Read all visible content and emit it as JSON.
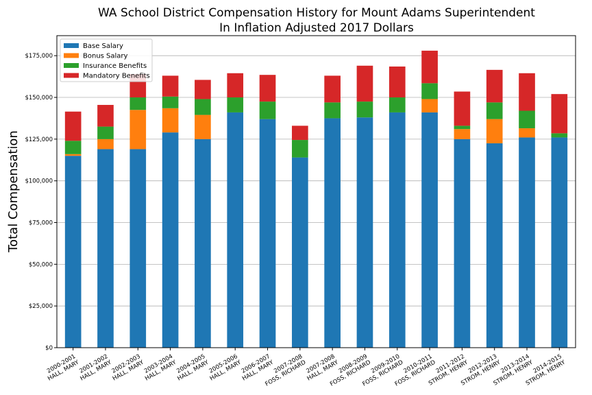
{
  "chart_data": {
    "type": "bar",
    "stacked": true,
    "title": "WA School District Compensation History for Mount Adams Superintendent",
    "subtitle": "In Inflation Adjusted 2017 Dollars",
    "ylabel": "Total Compensation",
    "xlabel": "",
    "ylim": [
      0,
      187000
    ],
    "yticks": [
      0,
      25000,
      50000,
      75000,
      100000,
      125000,
      150000,
      175000
    ],
    "ytick_labels": [
      "$0",
      "$25,000",
      "$50,000",
      "$75,000",
      "$100,000",
      "$125,000",
      "$150,000",
      "$175,000"
    ],
    "grid": "horizontal",
    "legend_position": "top-left",
    "categories": [
      [
        "2000-2001",
        "HALL, MARY"
      ],
      [
        "2001-2002",
        "HALL, MARY"
      ],
      [
        "2002-2003",
        "HALL, MARY"
      ],
      [
        "2003-2004",
        "HALL, MARY"
      ],
      [
        "2004-2005",
        "HALL, MARY"
      ],
      [
        "2005-2006",
        "HALL, MARY"
      ],
      [
        "2006-2007",
        "HALL, MARY"
      ],
      [
        "2007-2008",
        "FOSS, RICHARD"
      ],
      [
        "2007-2008",
        "HALL, MARY"
      ],
      [
        "2008-2009",
        "FOSS, RICHARD"
      ],
      [
        "2009-2010",
        "FOSS, RICHARD"
      ],
      [
        "2010-2011",
        "FOSS, RICHARD"
      ],
      [
        "2011-2012",
        "STROM, HENRY"
      ],
      [
        "2012-2013",
        "STROM, HENRY"
      ],
      [
        "2013-2014",
        "STROM, HENRY"
      ],
      [
        "2014-2015",
        "STROM, HENRY"
      ]
    ],
    "series": [
      {
        "name": "Base Salary",
        "color": "#1f77b4",
        "values": [
          115000,
          119000,
          119000,
          129000,
          125000,
          141000,
          137000,
          114000,
          137500,
          138000,
          141000,
          141000,
          125000,
          122500,
          126000,
          126000
        ]
      },
      {
        "name": "Bonus Salary",
        "color": "#ff7f0e",
        "values": [
          1000,
          6000,
          23500,
          14500,
          14500,
          0,
          0,
          0,
          0,
          0,
          0,
          8000,
          6000,
          14500,
          5500,
          0
        ]
      },
      {
        "name": "Insurance Benefits",
        "color": "#2ca02c",
        "values": [
          8000,
          7500,
          7500,
          7000,
          9500,
          9000,
          10500,
          10500,
          9500,
          9500,
          9000,
          9500,
          2000,
          10000,
          10500,
          2500
        ]
      },
      {
        "name": "Mandatory Benefits",
        "color": "#d62728",
        "values": [
          17500,
          13000,
          14000,
          12500,
          11500,
          14500,
          16000,
          8500,
          16000,
          21500,
          18500,
          19500,
          20500,
          19500,
          22500,
          23500
        ]
      }
    ]
  }
}
